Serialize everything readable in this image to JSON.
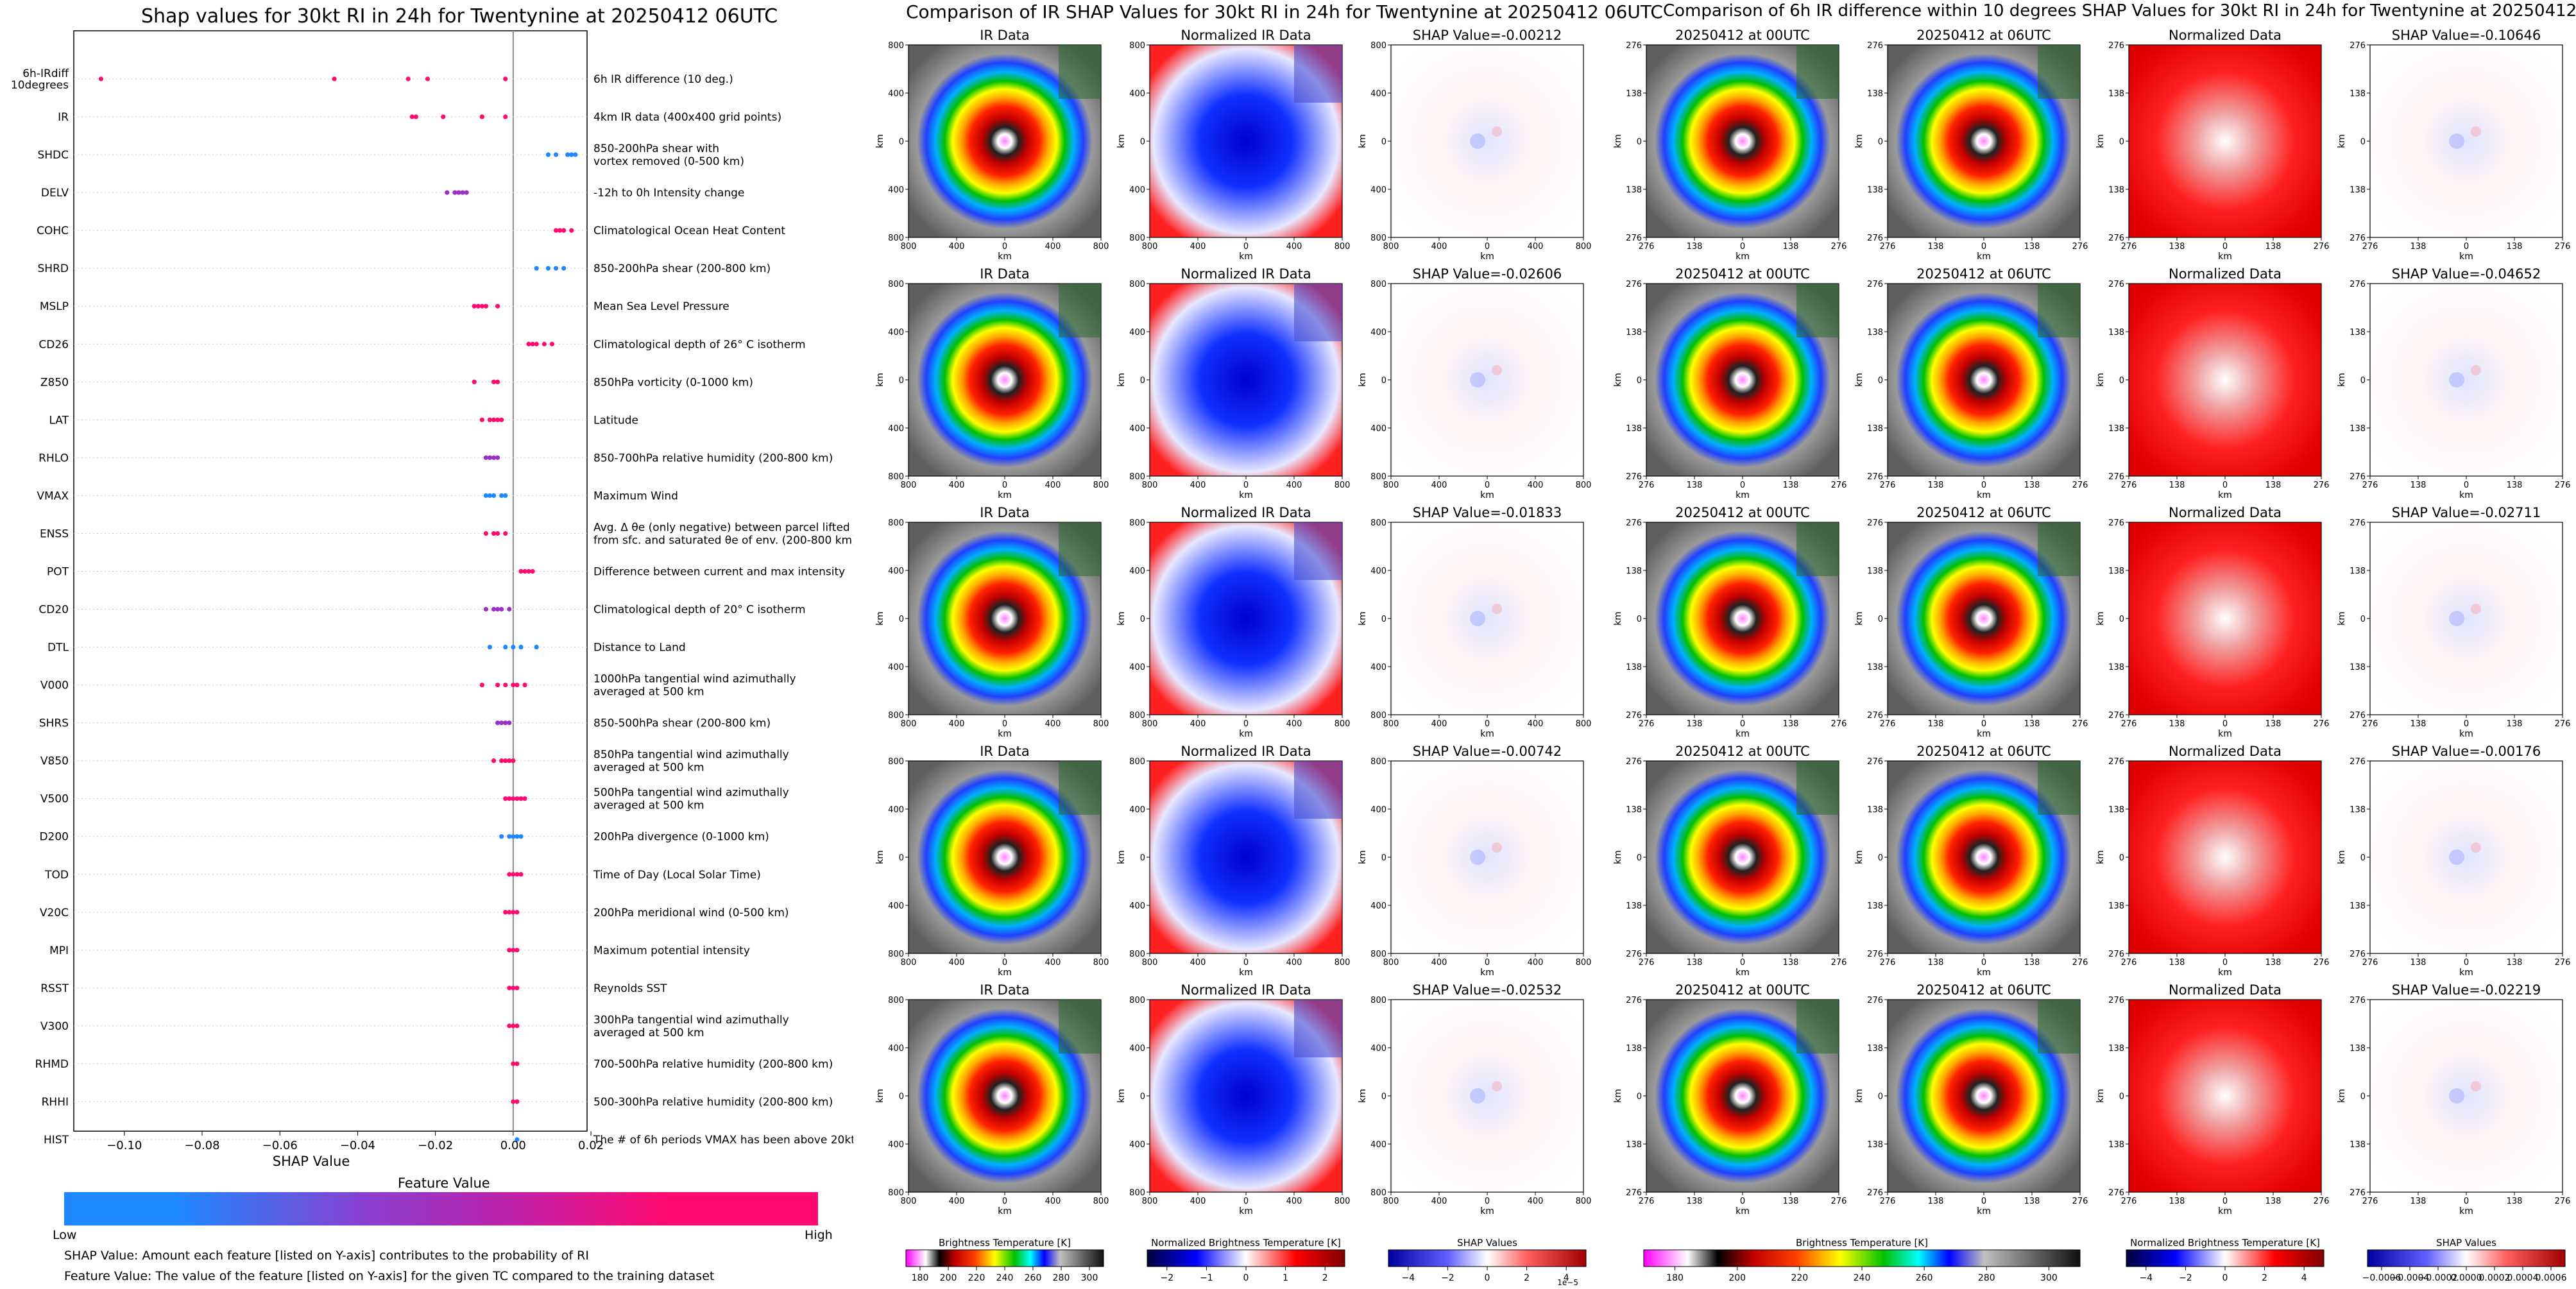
{
  "colors": {
    "low": "#1e88ff",
    "mid": "#9b30c8",
    "high": "#ff0a6e"
  },
  "left": {
    "title": "Shap values for 30kt RI in 24h for Twentynine at 20250412 06UTC",
    "xlabel": "SHAP Value",
    "xticks": [
      "−0.10",
      "−0.08",
      "−0.06",
      "−0.04",
      "−0.02",
      "0.00",
      "0.02"
    ],
    "feature_value_label": "Feature Value",
    "low_label": "Low",
    "high_label": "High",
    "note1": "SHAP Value: Amount each feature [listed on Y-axis] contributes to the probability of RI",
    "note2": "Feature Value: The value of the feature [listed on Y-axis] for the given TC compared to the training dataset"
  },
  "chart_data": {
    "type": "scatter",
    "title": "Shap values for 30kt RI in 24h for Twentynine at 20250412 06UTC",
    "xlabel": "SHAP Value",
    "xlim": [
      -0.113,
      0.019
    ],
    "features": [
      {
        "name": "6h-IRdiff\n10degrees",
        "desc": "6h IR difference (10 deg.)",
        "values": [
          -0.106,
          -0.046,
          -0.027,
          -0.022,
          -0.002
        ],
        "color": "high"
      },
      {
        "name": "IR",
        "desc": "4km IR data (400x400 grid points)",
        "values": [
          -0.026,
          -0.025,
          -0.018,
          -0.008,
          -0.002
        ],
        "color": "high"
      },
      {
        "name": "SHDC",
        "desc": "850-200hPa shear with\nvortex removed (0-500 km)",
        "values": [
          0.009,
          0.011,
          0.014,
          0.015,
          0.016
        ],
        "color": "low"
      },
      {
        "name": "DELV",
        "desc": "-12h to 0h Intensity change",
        "values": [
          -0.017,
          -0.015,
          -0.014,
          -0.013,
          -0.012
        ],
        "color": "mid"
      },
      {
        "name": "COHC",
        "desc": "Climatological Ocean Heat Content",
        "values": [
          0.011,
          0.012,
          0.013,
          0.015
        ],
        "color": "high"
      },
      {
        "name": "SHRD",
        "desc": "850-200hPa shear (200-800 km)",
        "values": [
          0.006,
          0.009,
          0.011,
          0.013
        ],
        "color": "low"
      },
      {
        "name": "MSLP",
        "desc": "Mean Sea Level Pressure",
        "values": [
          -0.01,
          -0.009,
          -0.008,
          -0.007,
          -0.004
        ],
        "color": "high"
      },
      {
        "name": "CD26",
        "desc": "Climatological depth of 26° C isotherm",
        "values": [
          0.004,
          0.005,
          0.006,
          0.008,
          0.01
        ],
        "color": "high"
      },
      {
        "name": "Z850",
        "desc": "850hPa vorticity (0-1000 km)",
        "values": [
          -0.01,
          -0.005,
          -0.004
        ],
        "color": "high"
      },
      {
        "name": "LAT",
        "desc": "Latitude",
        "values": [
          -0.008,
          -0.006,
          -0.005,
          -0.004,
          -0.003
        ],
        "color": "high"
      },
      {
        "name": "RHLO",
        "desc": "850-700hPa relative humidity (200-800 km)",
        "values": [
          -0.007,
          -0.006,
          -0.005,
          -0.004
        ],
        "color": "mid"
      },
      {
        "name": "VMAX",
        "desc": "Maximum Wind",
        "values": [
          -0.007,
          -0.006,
          -0.005,
          -0.003,
          -0.002
        ],
        "color": "low"
      },
      {
        "name": "ENSS",
        "desc": "Avg. Δ θe (only negative) between parcel lifted\nfrom sfc. and saturated θe of env. (200-800 km)",
        "values": [
          -0.007,
          -0.005,
          -0.004,
          -0.002
        ],
        "color": "high"
      },
      {
        "name": "POT",
        "desc": "Difference between current and max intensity",
        "values": [
          0.002,
          0.003,
          0.004,
          0.005
        ],
        "color": "high"
      },
      {
        "name": "CD20",
        "desc": "Climatological depth of 20° C isotherm",
        "values": [
          -0.007,
          -0.005,
          -0.004,
          -0.003,
          -0.001
        ],
        "color": "mid"
      },
      {
        "name": "DTL",
        "desc": "Distance to Land",
        "values": [
          -0.006,
          -0.002,
          0.0,
          0.002,
          0.006
        ],
        "color": "low"
      },
      {
        "name": "V000",
        "desc": "1000hPa tangential wind azimuthally\naveraged at 500 km",
        "values": [
          -0.008,
          -0.004,
          -0.002,
          0.0,
          0.001,
          0.003
        ],
        "color": "high"
      },
      {
        "name": "SHRS",
        "desc": "850-500hPa shear (200-800 km)",
        "values": [
          -0.004,
          -0.003,
          -0.002,
          -0.001
        ],
        "color": "mid"
      },
      {
        "name": "V850",
        "desc": "850hPa tangential wind azimuthally\naveraged at 500 km",
        "values": [
          -0.005,
          -0.003,
          -0.002,
          -0.001,
          0.0
        ],
        "color": "high"
      },
      {
        "name": "V500",
        "desc": "500hPa tangential wind azimuthally\naveraged at 500 km",
        "values": [
          -0.002,
          -0.001,
          0.0,
          0.001,
          0.002,
          0.003
        ],
        "color": "high"
      },
      {
        "name": "D200",
        "desc": "200hPa divergence (0-1000 km)",
        "values": [
          -0.003,
          -0.001,
          0.0,
          0.001,
          0.002
        ],
        "color": "low"
      },
      {
        "name": "TOD",
        "desc": "Time of Day (Local Solar Time)",
        "values": [
          -0.001,
          0.0,
          0.001,
          0.002
        ],
        "color": "high"
      },
      {
        "name": "V20C",
        "desc": "200hPa meridional wind (0-500 km)",
        "values": [
          -0.002,
          -0.001,
          0.0,
          0.001
        ],
        "color": "high"
      },
      {
        "name": "MPI",
        "desc": "Maximum potential intensity",
        "values": [
          -0.001,
          0.0,
          0.001
        ],
        "color": "high"
      },
      {
        "name": "RSST",
        "desc": "Reynolds SST",
        "values": [
          -0.001,
          0.0,
          0.001
        ],
        "color": "high"
      },
      {
        "name": "V300",
        "desc": "300hPa tangential wind azimuthally\naveraged at 500 km",
        "values": [
          -0.001,
          0.0,
          0.001
        ],
        "color": "high"
      },
      {
        "name": "RHMD",
        "desc": "700-500hPa relative humidity (200-800 km)",
        "values": [
          0.0,
          0.001
        ],
        "color": "high"
      },
      {
        "name": "RHHI",
        "desc": "500-300hPa relative humidity (200-800 km)",
        "values": [
          0.0,
          0.001
        ],
        "color": "high"
      },
      {
        "name": "HIST",
        "desc": "The # of 6h periods VMAX has been above 20kt",
        "values": [
          0.001
        ],
        "color": "low"
      }
    ]
  },
  "mid": {
    "title": "Comparison of IR SHAP Values for 30kt RI in 24h for Twentynine at 20250412 06UTC",
    "col_titles": [
      "IR Data",
      "Normalized IR Data"
    ],
    "shap_titles": [
      "SHAP Value=-0.00212",
      "SHAP Value=-0.02606",
      "SHAP Value=-0.01833",
      "SHAP Value=-0.00742",
      "SHAP Value=-0.02532"
    ],
    "ticks": [
      "800",
      "400",
      "0",
      "400",
      "800"
    ],
    "axis": "km",
    "cbar_labels": [
      "Brightness Temperature [K]",
      "Normalized Brightness Temperature [K]",
      "SHAP Values"
    ],
    "cbar1_ticks": [
      "180",
      "200",
      "220",
      "240",
      "260",
      "280",
      "300"
    ],
    "cbar2_ticks": [
      "−2",
      "−1",
      "0",
      "1",
      "2"
    ],
    "cbar3_ticks": [
      "−4",
      "−2",
      "0",
      "2",
      "4"
    ],
    "cbar3_exp": "1e−5"
  },
  "right": {
    "title": "Comparison of 6h IR difference within 10 degrees SHAP Values for 30kt RI in 24h for Twentynine at 20250412 06UTC",
    "col_titles": [
      "20250412 at 00UTC",
      "20250412 at 06UTC",
      "Normalized Data"
    ],
    "shap_titles": [
      "SHAP Value=-0.10646",
      "SHAP Value=-0.04652",
      "SHAP Value=-0.02711",
      "SHAP Value=-0.00176",
      "SHAP Value=-0.02219"
    ],
    "ticks": [
      "276",
      "138",
      "0",
      "138",
      "276"
    ],
    "axis": "km",
    "cbar_labels": [
      "Brightness Temperature [K]",
      "Normalized Brightness Temperature [K]",
      "SHAP Values"
    ],
    "cbar1_ticks": [
      "180",
      "200",
      "220",
      "240",
      "260",
      "280",
      "300"
    ],
    "cbar2_ticks": [
      "−4",
      "−2",
      "0",
      "2",
      "4"
    ],
    "cbar3_ticks": [
      "−0.0006",
      "−0.0004",
      "−0.0002",
      "0.0000",
      "0.0002",
      "0.0004",
      "0.0006"
    ]
  }
}
